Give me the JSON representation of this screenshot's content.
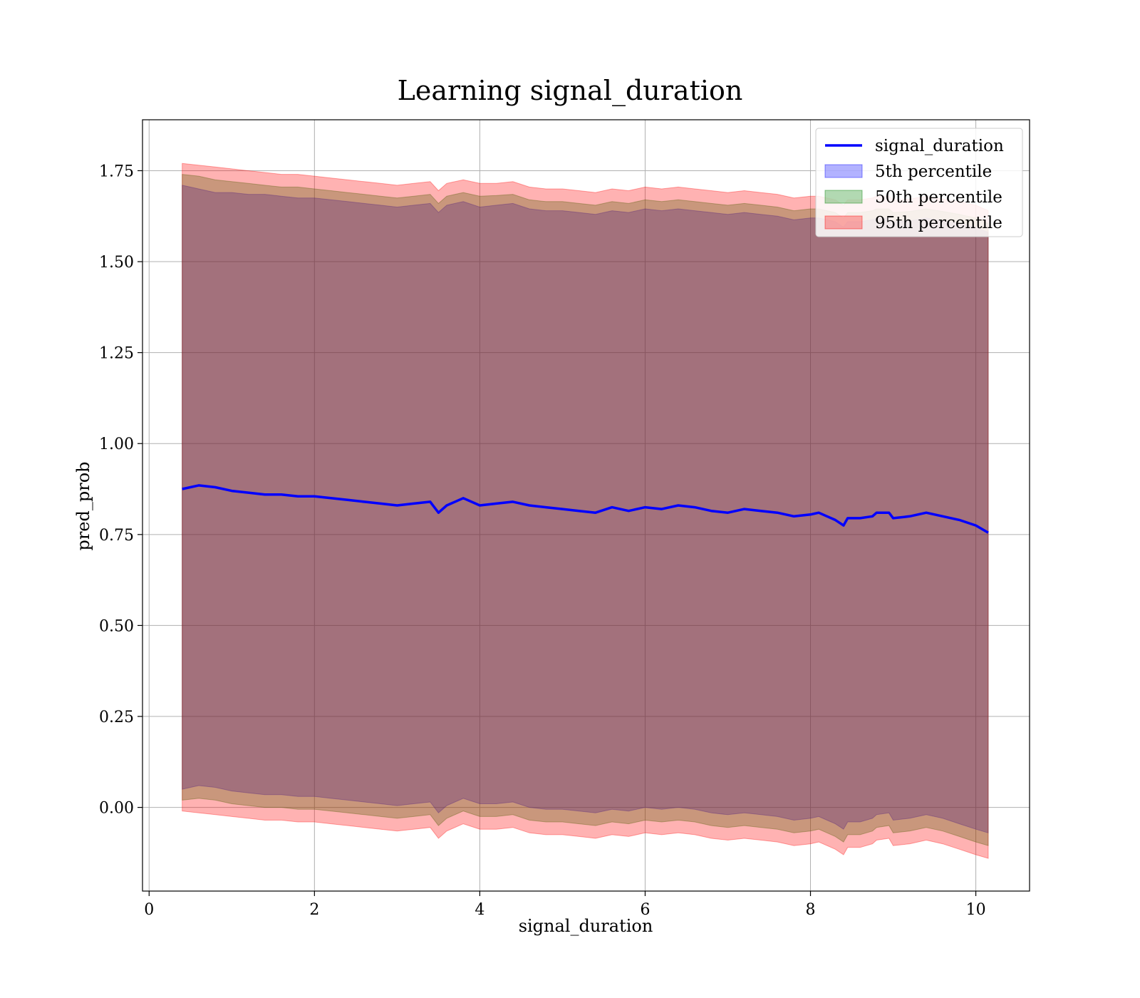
{
  "chart_data": {
    "type": "area",
    "title": "Learning signal_duration",
    "xlabel": "signal_duration",
    "ylabel": "pred_prob",
    "xlim": [
      -0.08,
      10.65
    ],
    "ylim": [
      -0.23,
      1.89
    ],
    "xticks": [
      0,
      2,
      4,
      6,
      8,
      10
    ],
    "xtick_labels": [
      "0",
      "2",
      "4",
      "6",
      "8",
      "10"
    ],
    "yticks": [
      0.0,
      0.25,
      0.5,
      0.75,
      1.0,
      1.25,
      1.5,
      1.75
    ],
    "ytick_labels": [
      "0.00",
      "0.25",
      "0.50",
      "0.75",
      "1.00",
      "1.25",
      "1.50",
      "1.75"
    ],
    "grid": true,
    "legend_position": "top-right",
    "colors": {
      "line": "#0000ff",
      "p5": "#0000ff",
      "p50": "#008000",
      "p95": "#ff0000",
      "grid": "#b0b0b0"
    },
    "x": [
      0.4,
      0.6,
      0.8,
      1.0,
      1.2,
      1.4,
      1.6,
      1.8,
      2.0,
      2.2,
      2.4,
      2.6,
      2.8,
      3.0,
      3.2,
      3.4,
      3.5,
      3.6,
      3.8,
      4.0,
      4.2,
      4.4,
      4.6,
      4.8,
      5.0,
      5.2,
      5.4,
      5.6,
      5.8,
      6.0,
      6.2,
      6.4,
      6.6,
      6.8,
      7.0,
      7.2,
      7.4,
      7.6,
      7.8,
      8.0,
      8.1,
      8.2,
      8.3,
      8.4,
      8.45,
      8.6,
      8.75,
      8.8,
      8.95,
      9.0,
      9.2,
      9.4,
      9.6,
      9.8,
      10.0,
      10.15
    ],
    "series": [
      {
        "name": "signal_duration",
        "style": "line",
        "values": [
          0.875,
          0.885,
          0.88,
          0.87,
          0.865,
          0.86,
          0.86,
          0.855,
          0.855,
          0.85,
          0.845,
          0.84,
          0.835,
          0.83,
          0.835,
          0.84,
          0.81,
          0.83,
          0.85,
          0.83,
          0.835,
          0.84,
          0.83,
          0.825,
          0.82,
          0.815,
          0.81,
          0.825,
          0.815,
          0.825,
          0.82,
          0.83,
          0.825,
          0.815,
          0.81,
          0.82,
          0.815,
          0.81,
          0.8,
          0.805,
          0.81,
          0.8,
          0.79,
          0.775,
          0.795,
          0.795,
          0.8,
          0.81,
          0.81,
          0.795,
          0.8,
          0.81,
          0.8,
          0.79,
          0.775,
          0.755
        ]
      },
      {
        "name": "5th percentile",
        "style": "band",
        "upper": [
          1.71,
          1.7,
          1.69,
          1.69,
          1.685,
          1.685,
          1.68,
          1.675,
          1.675,
          1.67,
          1.665,
          1.66,
          1.655,
          1.65,
          1.655,
          1.66,
          1.635,
          1.655,
          1.665,
          1.65,
          1.655,
          1.66,
          1.645,
          1.64,
          1.64,
          1.635,
          1.63,
          1.64,
          1.635,
          1.645,
          1.64,
          1.645,
          1.64,
          1.635,
          1.63,
          1.635,
          1.63,
          1.625,
          1.615,
          1.62,
          1.62,
          1.615,
          1.61,
          1.595,
          1.61,
          1.61,
          1.615,
          1.62,
          1.62,
          1.61,
          1.612,
          1.62,
          1.612,
          1.605,
          1.595,
          1.58
        ],
        "lower": [
          0.05,
          0.06,
          0.055,
          0.045,
          0.04,
          0.035,
          0.035,
          0.03,
          0.03,
          0.025,
          0.02,
          0.015,
          0.01,
          0.005,
          0.01,
          0.015,
          -0.015,
          0.005,
          0.025,
          0.01,
          0.01,
          0.015,
          0.0,
          -0.005,
          -0.005,
          -0.01,
          -0.015,
          -0.005,
          -0.01,
          0.0,
          -0.005,
          0.0,
          -0.005,
          -0.015,
          -0.02,
          -0.015,
          -0.02,
          -0.025,
          -0.035,
          -0.03,
          -0.025,
          -0.035,
          -0.045,
          -0.06,
          -0.04,
          -0.04,
          -0.03,
          -0.02,
          -0.015,
          -0.035,
          -0.03,
          -0.02,
          -0.03,
          -0.045,
          -0.06,
          -0.07
        ]
      },
      {
        "name": "50th percentile",
        "style": "band",
        "upper": [
          1.74,
          1.735,
          1.725,
          1.72,
          1.715,
          1.71,
          1.705,
          1.705,
          1.7,
          1.695,
          1.69,
          1.685,
          1.68,
          1.675,
          1.68,
          1.685,
          1.66,
          1.68,
          1.69,
          1.68,
          1.682,
          1.685,
          1.67,
          1.665,
          1.665,
          1.66,
          1.655,
          1.665,
          1.66,
          1.67,
          1.665,
          1.67,
          1.665,
          1.66,
          1.655,
          1.66,
          1.655,
          1.65,
          1.64,
          1.645,
          1.645,
          1.64,
          1.635,
          1.62,
          1.635,
          1.635,
          1.64,
          1.645,
          1.645,
          1.635,
          1.638,
          1.645,
          1.638,
          1.63,
          1.62,
          1.605
        ],
        "lower": [
          0.02,
          0.025,
          0.02,
          0.01,
          0.005,
          0.0,
          0.0,
          -0.005,
          -0.005,
          -0.01,
          -0.015,
          -0.02,
          -0.025,
          -0.03,
          -0.025,
          -0.02,
          -0.05,
          -0.03,
          -0.01,
          -0.025,
          -0.025,
          -0.02,
          -0.035,
          -0.04,
          -0.04,
          -0.045,
          -0.05,
          -0.04,
          -0.045,
          -0.035,
          -0.04,
          -0.035,
          -0.04,
          -0.05,
          -0.055,
          -0.05,
          -0.055,
          -0.06,
          -0.07,
          -0.065,
          -0.06,
          -0.07,
          -0.08,
          -0.095,
          -0.075,
          -0.075,
          -0.065,
          -0.055,
          -0.05,
          -0.07,
          -0.065,
          -0.055,
          -0.065,
          -0.08,
          -0.095,
          -0.105
        ]
      },
      {
        "name": "95th percentile",
        "style": "band",
        "upper": [
          1.77,
          1.765,
          1.76,
          1.755,
          1.75,
          1.745,
          1.74,
          1.74,
          1.735,
          1.73,
          1.725,
          1.72,
          1.715,
          1.71,
          1.715,
          1.72,
          1.695,
          1.715,
          1.725,
          1.715,
          1.715,
          1.72,
          1.705,
          1.7,
          1.7,
          1.695,
          1.69,
          1.7,
          1.695,
          1.705,
          1.7,
          1.705,
          1.7,
          1.695,
          1.69,
          1.695,
          1.69,
          1.685,
          1.675,
          1.68,
          1.68,
          1.675,
          1.67,
          1.655,
          1.67,
          1.67,
          1.675,
          1.68,
          1.68,
          1.67,
          1.672,
          1.68,
          1.672,
          1.665,
          1.655,
          1.64
        ],
        "lower": [
          -0.01,
          -0.015,
          -0.02,
          -0.025,
          -0.03,
          -0.035,
          -0.035,
          -0.04,
          -0.04,
          -0.045,
          -0.05,
          -0.055,
          -0.06,
          -0.065,
          -0.06,
          -0.055,
          -0.085,
          -0.065,
          -0.045,
          -0.06,
          -0.06,
          -0.055,
          -0.07,
          -0.075,
          -0.075,
          -0.08,
          -0.085,
          -0.075,
          -0.08,
          -0.07,
          -0.075,
          -0.07,
          -0.075,
          -0.085,
          -0.09,
          -0.085,
          -0.09,
          -0.095,
          -0.105,
          -0.1,
          -0.095,
          -0.105,
          -0.115,
          -0.13,
          -0.11,
          -0.11,
          -0.1,
          -0.09,
          -0.085,
          -0.105,
          -0.1,
          -0.09,
          -0.1,
          -0.115,
          -0.13,
          -0.14
        ]
      }
    ]
  }
}
